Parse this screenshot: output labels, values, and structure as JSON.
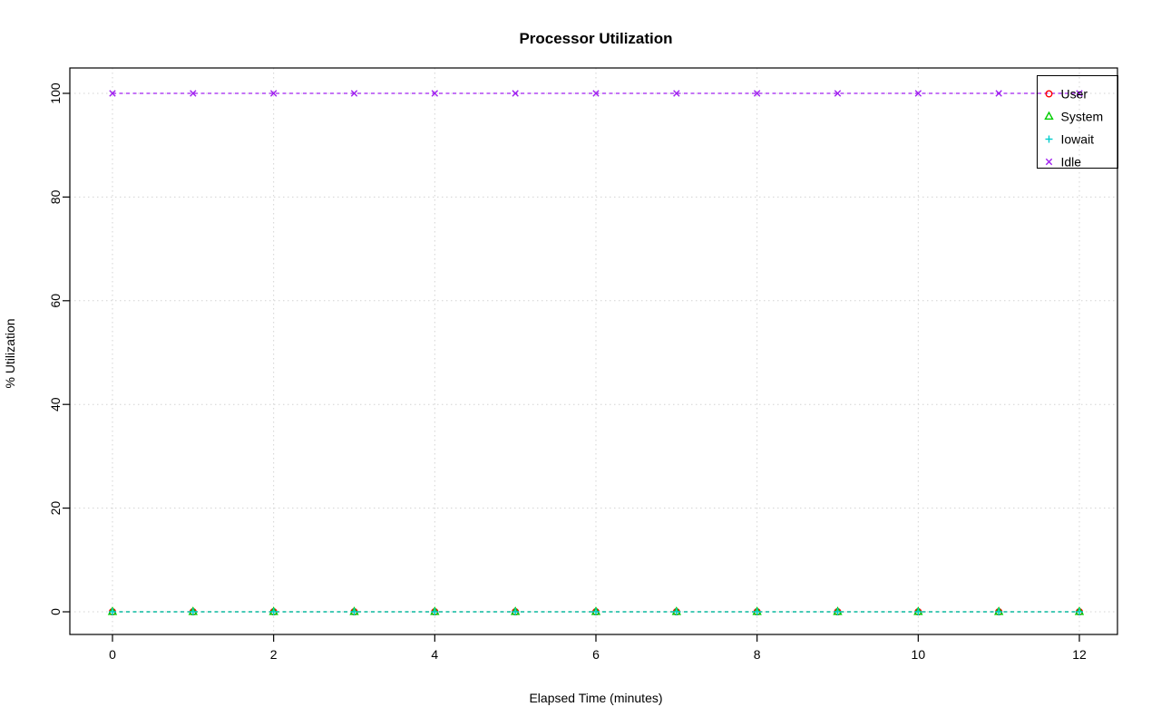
{
  "chart_data": {
    "type": "line",
    "title": "Processor Utilization",
    "xlabel": "Elapsed Time (minutes)",
    "ylabel": "% Utilization",
    "xlim": [
      0,
      12
    ],
    "ylim": [
      0,
      100
    ],
    "xticks": [
      0,
      2,
      4,
      6,
      8,
      10,
      12
    ],
    "yticks": [
      0,
      20,
      40,
      60,
      80,
      100
    ],
    "grid": true,
    "grid_style": "dotted",
    "grid_color": "#d3d3d3",
    "line_style": "dashed",
    "legend_position": "topright",
    "x": [
      0,
      1,
      2,
      3,
      4,
      5,
      6,
      7,
      8,
      9,
      10,
      11,
      12
    ],
    "series": [
      {
        "name": "User",
        "color": "#ff0000",
        "marker": "circle",
        "values": [
          0,
          0,
          0,
          0,
          0,
          0,
          0,
          0,
          0,
          0,
          0,
          0,
          0
        ]
      },
      {
        "name": "System",
        "color": "#00cd00",
        "marker": "triangle",
        "values": [
          0,
          0,
          0,
          0,
          0,
          0,
          0,
          0,
          0,
          0,
          0,
          0,
          0
        ]
      },
      {
        "name": "Iowait",
        "color": "#00cdcd",
        "marker": "plus",
        "values": [
          0,
          0,
          0,
          0,
          0,
          0,
          0,
          0,
          0,
          0,
          0,
          0,
          0
        ]
      },
      {
        "name": "Idle",
        "color": "#a020f0",
        "marker": "x",
        "values": [
          100,
          100,
          100,
          100,
          100,
          100,
          100,
          100,
          100,
          100,
          100,
          100,
          100
        ]
      }
    ]
  }
}
